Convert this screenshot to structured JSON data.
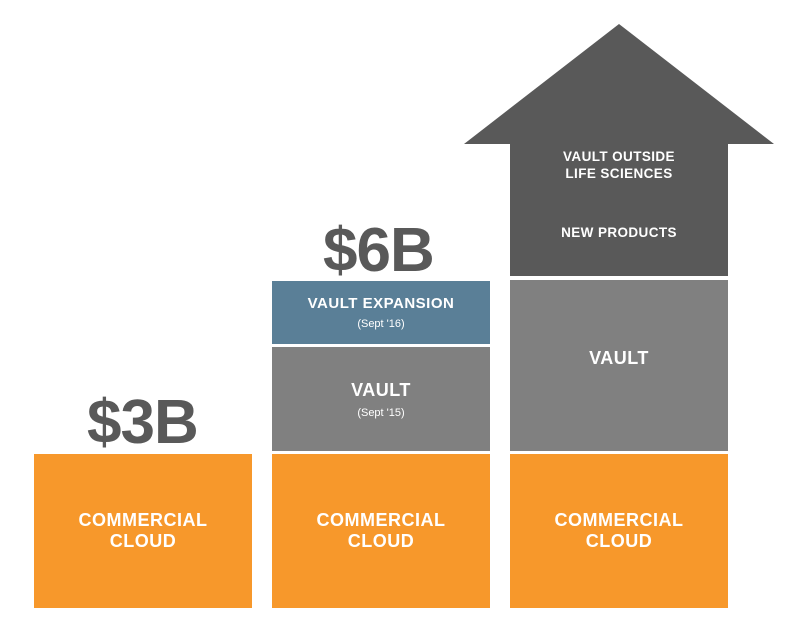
{
  "columns": [
    {
      "amount": "$3B",
      "blocks": [
        {
          "label": "COMMERCIAL\nCLOUD"
        }
      ]
    },
    {
      "amount": "$6B",
      "blocks": [
        {
          "label": "VAULT EXPANSION",
          "sublabel": "(Sept '16)"
        },
        {
          "label": "VAULT",
          "sublabel": "(Sept '15)"
        },
        {
          "label": "COMMERCIAL\nCLOUD"
        }
      ]
    },
    {
      "arrow_labels": [
        "VAULT OUTSIDE\nLIFE SCIENCES",
        "NEW PRODUCTS"
      ],
      "blocks": [
        {
          "label": "VAULT"
        },
        {
          "label": "COMMERCIAL\nCLOUD"
        }
      ]
    }
  ],
  "colors": {
    "commercial_cloud": "#f7982b",
    "vault": "#808080",
    "vault_expansion": "#5a7f97",
    "arrow": "#595959",
    "amount_text": "#595959"
  }
}
